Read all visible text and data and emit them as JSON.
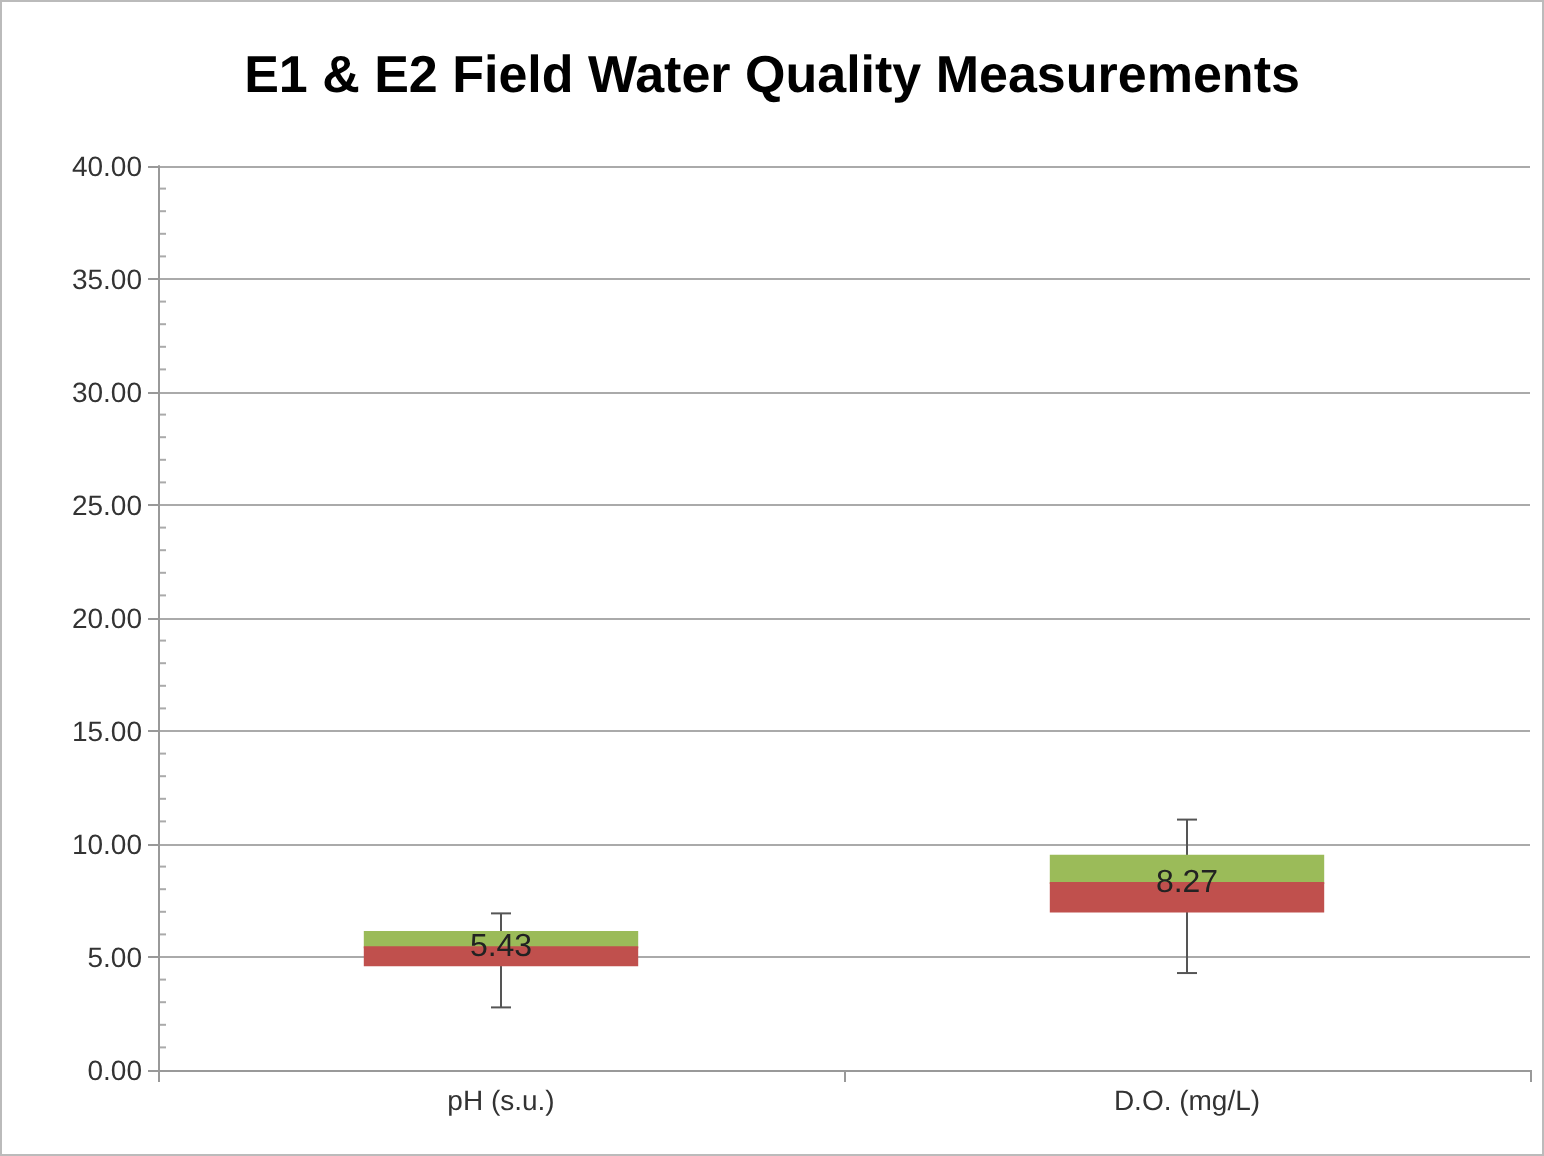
{
  "chart_data": {
    "type": "box",
    "title": "E1 & E2 Field Water Quality Measurements",
    "categories": [
      "pH (s.u.)",
      "D.O. (mg/L)"
    ],
    "boxes": [
      {
        "low": 2.77,
        "q1": 4.59,
        "median": 5.43,
        "q3": 6.15,
        "high": 6.93
      },
      {
        "low": 4.29,
        "q1": 6.97,
        "median": 8.27,
        "q3": 9.52,
        "high": 11.08
      }
    ],
    "colors": [
      "#c0504d",
      "#9bbb59"
    ],
    "value_labels": [
      "5.43",
      "8.27"
    ],
    "ylim": [
      0,
      40
    ],
    "yticks": [
      {
        "value": 0,
        "label": "0.00"
      },
      {
        "value": 5,
        "label": "5.00"
      },
      {
        "value": 10,
        "label": "10.00"
      },
      {
        "value": 15,
        "label": "15.00"
      },
      {
        "value": 20,
        "label": "20.00"
      },
      {
        "value": 25,
        "label": "25.00"
      },
      {
        "value": 30,
        "label": "30.00"
      },
      {
        "value": 35,
        "label": "35.00"
      },
      {
        "value": 40,
        "label": "40.00"
      }
    ],
    "grid": "y"
  }
}
